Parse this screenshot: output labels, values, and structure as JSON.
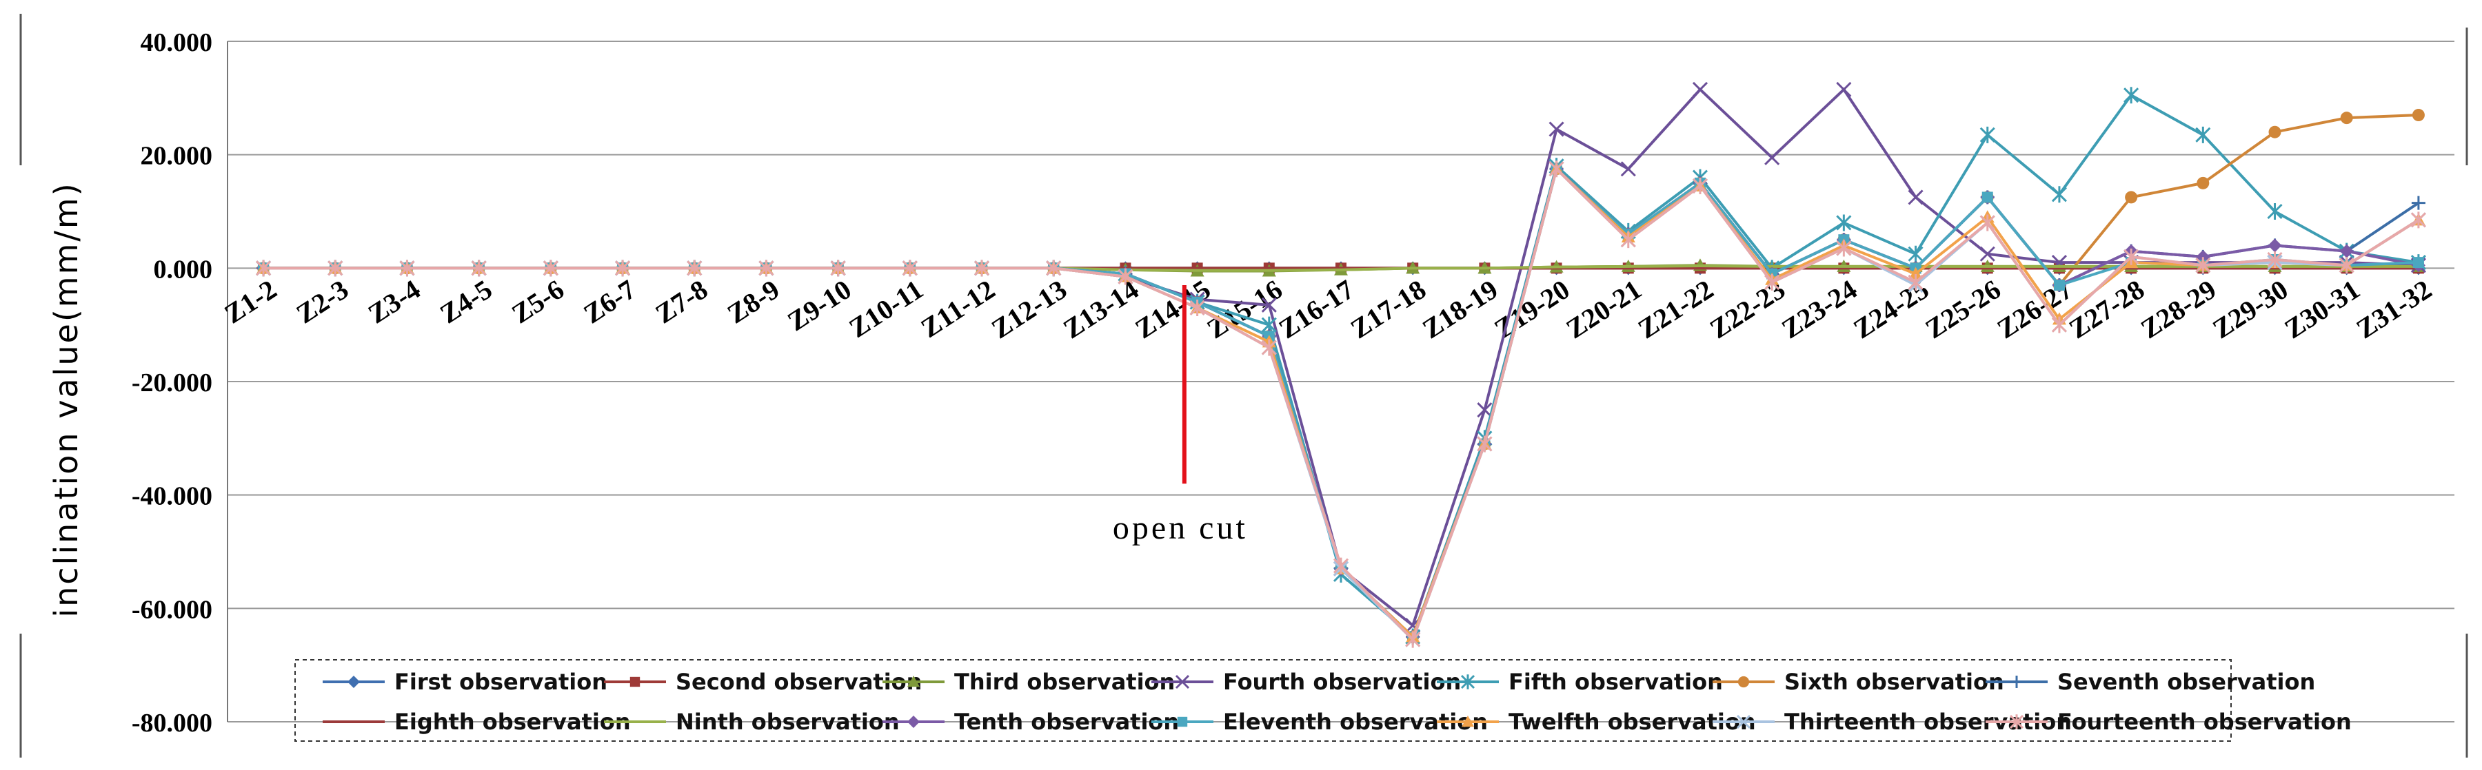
{
  "chart_data": {
    "type": "line",
    "title": "",
    "xlabel": "",
    "ylabel": "inclination value(mm/m)",
    "ylim": [
      -80,
      40
    ],
    "yticks": [
      40,
      20,
      0,
      -20,
      -40,
      -60,
      -80
    ],
    "ytick_labels": [
      "40.000",
      "20.000",
      "0.000",
      "-20.000",
      "-40.000",
      "-60.000",
      "-80.000"
    ],
    "grid": true,
    "legend_position": "bottom",
    "categories": [
      "Z1-2",
      "Z2-3",
      "Z3-4",
      "Z4-5",
      "Z5-6",
      "Z6-7",
      "Z7-8",
      "Z8-9",
      "Z9-10",
      "Z10-11",
      "Z11-12",
      "Z12-13",
      "Z13-14",
      "Z14-15",
      "Z15-16",
      "Z16-17",
      "Z17-18",
      "Z18-19",
      "Z19-20",
      "Z20-21",
      "Z21-22",
      "Z22-23",
      "Z23-24",
      "Z24-25",
      "Z25-26",
      "Z26-27",
      "Z27-28",
      "Z28-29",
      "Z29-30",
      "Z30-31",
      "Z31-32"
    ],
    "annotation": {
      "text": "open cut",
      "category": "Z14-15",
      "y_top": -3,
      "y_bottom": -38,
      "color": "#e3101a"
    },
    "series": [
      {
        "name": "First observation",
        "color": "#3f6fb0",
        "marker": "diamond",
        "values": [
          0,
          0,
          0,
          0,
          0,
          0,
          0,
          0,
          0,
          0,
          0,
          0,
          0,
          0,
          0,
          0,
          0,
          0,
          0,
          0,
          0,
          0,
          0,
          0,
          0,
          0,
          0,
          0,
          0,
          0,
          0
        ]
      },
      {
        "name": "Second observation",
        "color": "#9e3a37",
        "marker": "square",
        "values": [
          0,
          0,
          0,
          0,
          0,
          0,
          0,
          0,
          0,
          0,
          0,
          0,
          0,
          0,
          0,
          0,
          0,
          0,
          0,
          0,
          0,
          0,
          0,
          0,
          0,
          0,
          0,
          0,
          0,
          0,
          0
        ]
      },
      {
        "name": "Third observation",
        "color": "#7f9a3a",
        "marker": "triangle",
        "values": [
          0,
          0,
          0,
          0,
          0,
          0,
          0,
          0,
          0,
          0,
          0,
          0,
          -0.3,
          -0.5,
          -0.5,
          -0.3,
          0,
          0,
          0.2,
          0.3,
          0.5,
          0.3,
          0.3,
          0.3,
          0.3,
          0.3,
          0.3,
          0.3,
          0.3,
          0.3,
          0.3
        ]
      },
      {
        "name": "Fourth observation",
        "color": "#6b4f98",
        "marker": "x",
        "values": [
          0,
          0,
          0,
          0,
          0,
          0,
          0,
          0,
          0,
          0,
          0,
          0,
          -1.5,
          -5.5,
          -6.5,
          -53,
          -63,
          -25,
          24.5,
          17.5,
          31.5,
          19.5,
          31.5,
          12.5,
          2.5,
          1,
          1,
          1,
          1,
          1,
          0.5
        ]
      },
      {
        "name": "Fifth observation",
        "color": "#3d9db3",
        "marker": "star",
        "values": [
          0,
          0,
          0,
          0,
          0,
          0,
          0,
          0,
          0,
          0,
          0,
          0,
          -1,
          -6,
          -10,
          -54,
          -65,
          -30,
          18,
          6.5,
          16,
          0,
          8,
          2.5,
          23.5,
          13,
          30.5,
          23.5,
          10,
          3,
          1
        ]
      },
      {
        "name": "Sixth observation",
        "color": "#d08638",
        "marker": "circle",
        "values": [
          0,
          0,
          0,
          0,
          0,
          0,
          0,
          0,
          0,
          0,
          0,
          0,
          -1,
          -6,
          -12,
          -53,
          -65,
          -31,
          17.5,
          6,
          15,
          -1,
          5,
          0,
          12.5,
          -3,
          12.5,
          15,
          24,
          26.5,
          27
        ]
      },
      {
        "name": "Seventh observation",
        "color": "#3c6ea7",
        "marker": "plus",
        "values": [
          0,
          0,
          0,
          0,
          0,
          0,
          0,
          0,
          0,
          0,
          0,
          0,
          -1,
          -6,
          -12,
          -53,
          -65,
          -31,
          17.5,
          6,
          15,
          -1,
          5,
          0,
          12.5,
          -3,
          3,
          2,
          4,
          3,
          11.5
        ]
      },
      {
        "name": "Eighth observation",
        "color": "#9b3a3a",
        "marker": "none",
        "values": [
          0,
          0,
          0,
          0,
          0,
          0,
          0,
          0,
          0,
          0,
          0,
          0,
          0,
          0,
          0,
          0,
          0,
          0,
          0,
          0,
          0,
          0,
          0,
          0,
          0,
          0,
          0,
          0,
          0,
          0,
          0
        ]
      },
      {
        "name": "Ninth observation",
        "color": "#98b14a",
        "marker": "none",
        "values": [
          0,
          0,
          0,
          0,
          0,
          0,
          0,
          0,
          0,
          0,
          0,
          0,
          -0.3,
          -0.4,
          -0.4,
          -0.3,
          0,
          0,
          0.2,
          0.3,
          0.4,
          0.3,
          0.3,
          0.3,
          0.3,
          0.3,
          0.3,
          0.3,
          0.3,
          0.3,
          0.3
        ]
      },
      {
        "name": "Tenth observation",
        "color": "#7b5aa6",
        "marker": "diamond",
        "values": [
          0,
          0,
          0,
          0,
          0,
          0,
          0,
          0,
          0,
          0,
          0,
          0,
          -1,
          -6,
          -12,
          -53,
          -65,
          -31,
          17.5,
          6,
          15,
          -1,
          5,
          0,
          12.5,
          -3,
          3,
          2,
          4,
          3,
          0.5
        ]
      },
      {
        "name": "Eleventh observation",
        "color": "#4aa7c0",
        "marker": "square",
        "values": [
          0,
          0,
          0,
          0,
          0,
          0,
          0,
          0,
          0,
          0,
          0,
          0,
          -1,
          -6,
          -12,
          -53,
          -65,
          -31,
          17.5,
          6,
          15,
          -1,
          5,
          0,
          12.5,
          -3,
          1,
          0.5,
          1.5,
          0.5,
          1
        ]
      },
      {
        "name": "Twelfth observation",
        "color": "#f2a24a",
        "marker": "triangle",
        "values": [
          0,
          0,
          0,
          0,
          0,
          0,
          0,
          0,
          0,
          0,
          0,
          0,
          -1.5,
          -7,
          -13,
          -53,
          -65,
          -31,
          17.5,
          5.5,
          14.5,
          -2,
          4,
          -1,
          9,
          -9,
          1,
          0.5,
          1,
          0.5,
          8.5
        ]
      },
      {
        "name": "Thirteenth observation",
        "color": "#a9c3e0",
        "marker": "x",
        "values": [
          0,
          0,
          0,
          0,
          0,
          0,
          0,
          0,
          0,
          0,
          0,
          0,
          -1.5,
          -7,
          -14,
          -53,
          -65.5,
          -31,
          17.5,
          5,
          14.5,
          -2.5,
          3.5,
          -3,
          8,
          -10,
          2,
          0.5,
          1,
          0.5,
          8.5
        ]
      },
      {
        "name": "Fourteenth observation",
        "color": "#e7a7a8",
        "marker": "star",
        "values": [
          0,
          0,
          0,
          0,
          0,
          0,
          0,
          0,
          0,
          0,
          0,
          0,
          -1.5,
          -7,
          -14,
          -52.5,
          -65.5,
          -31,
          17.5,
          5,
          14.5,
          -2.5,
          3.5,
          -2.5,
          8,
          -10,
          2,
          0.5,
          1.5,
          0.5,
          8.5
        ]
      }
    ]
  }
}
